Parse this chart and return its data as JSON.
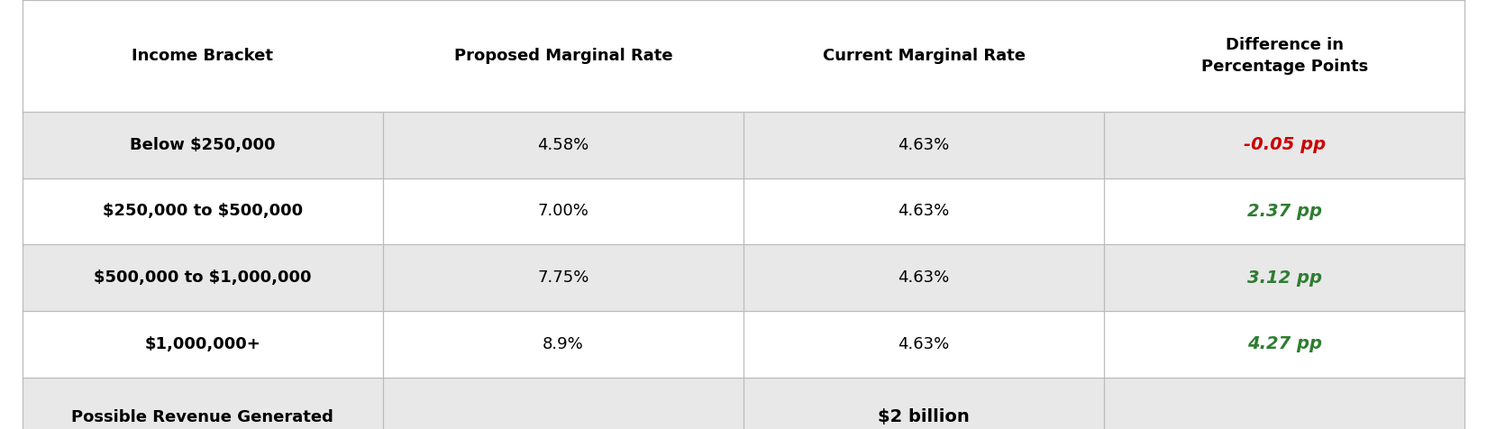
{
  "headers": [
    "Income Bracket",
    "Proposed Marginal Rate",
    "Current Marginal Rate",
    "Difference in\nPercentage Points"
  ],
  "rows": [
    [
      "Below $250,000",
      "4.58%",
      "4.63%",
      "-0.05 pp"
    ],
    [
      "$250,000 to $500,000",
      "7.00%",
      "4.63%",
      "2.37 pp"
    ],
    [
      "$500,000 to $1,000,000",
      "7.75%",
      "4.63%",
      "3.12 pp"
    ],
    [
      "$1,000,000+",
      "8.9%",
      "4.63%",
      "4.27 pp"
    ]
  ],
  "footer_col0": "Possible Revenue Generated",
  "footer_span": "$2 billion",
  "diff_colors": [
    "#cc0000",
    "#2e7d32",
    "#2e7d32",
    "#2e7d32"
  ],
  "row_bg_colors": [
    "#e8e8e8",
    "#ffffff",
    "#e8e8e8",
    "#ffffff"
  ],
  "footer_bg": "#e8e8e8",
  "header_bg": "#ffffff",
  "header_fontsize": 13,
  "cell_fontsize": 13,
  "diff_fontsize": 14,
  "border_color": "#bbbbbb",
  "text_color": "#000000"
}
